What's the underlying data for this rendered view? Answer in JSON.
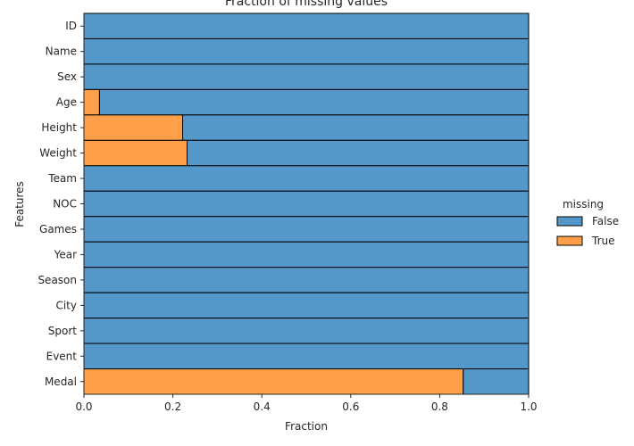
{
  "chart_data": {
    "type": "bar",
    "orientation": "horizontal",
    "stacked": true,
    "title": "Fraction of missing values",
    "xlabel": "Fraction",
    "ylabel": "Features",
    "xlim": [
      0,
      1
    ],
    "x_ticks": [
      "0.0",
      "0.2",
      "0.4",
      "0.6",
      "0.8",
      "1.0"
    ],
    "categories": [
      "ID",
      "Name",
      "Sex",
      "Age",
      "Height",
      "Weight",
      "Team",
      "NOC",
      "Games",
      "Year",
      "Season",
      "City",
      "Sport",
      "Event",
      "Medal"
    ],
    "series": [
      {
        "name": "True",
        "color": "#ff9f4a",
        "values": [
          0,
          0,
          0,
          0.035,
          0.222,
          0.232,
          0,
          0,
          0,
          0,
          0,
          0,
          0,
          0,
          0.853
        ]
      },
      {
        "name": "False",
        "color": "#5497c9",
        "values": [
          1,
          1,
          1,
          0.965,
          0.778,
          0.768,
          1,
          1,
          1,
          1,
          1,
          1,
          1,
          1,
          0.147
        ]
      }
    ],
    "legend": {
      "title": "missing",
      "entries": [
        "False",
        "True"
      ],
      "placement": "right"
    },
    "grid": false
  }
}
